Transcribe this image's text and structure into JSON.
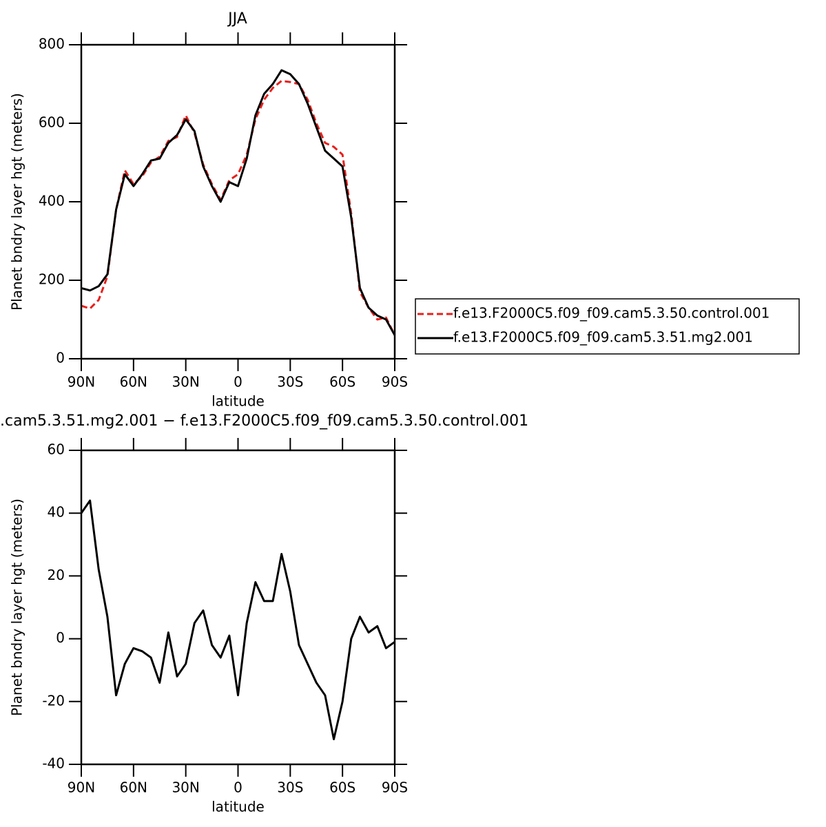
{
  "chart_data": [
    {
      "type": "line",
      "title": "JJA",
      "xlabel": "latitude",
      "ylabel": "Planet bndry layer hgt (meters)",
      "x": [
        90,
        85,
        80,
        75,
        70,
        65,
        60,
        55,
        50,
        45,
        40,
        35,
        30,
        25,
        20,
        15,
        10,
        5,
        0,
        -5,
        -10,
        -15,
        -20,
        -25,
        -30,
        -35,
        -40,
        -45,
        -50,
        -55,
        -60,
        -65,
        -70,
        -75,
        -80,
        -85,
        -90
      ],
      "xlim": [
        90,
        -90
      ],
      "xticks": [
        {
          "value": 90,
          "label": "90N"
        },
        {
          "value": 60,
          "label": "60N"
        },
        {
          "value": 30,
          "label": "30N"
        },
        0,
        {
          "value": -30,
          "label": "30S"
        },
        {
          "value": -60,
          "label": "60S"
        },
        {
          "value": -90,
          "label": "90S"
        }
      ],
      "ylim": [
        0,
        800
      ],
      "yticks": [
        0,
        200,
        400,
        600,
        800
      ],
      "legend": "right",
      "series": [
        {
          "name": "f.e13.F2000C5.f09_f09.cam5.3.50.control.001",
          "color": "#e8201c",
          "linestyle": "dashed",
          "values": [
            135,
            128,
            150,
            210,
            380,
            480,
            445,
            465,
            500,
            515,
            555,
            565,
            620,
            575,
            495,
            445,
            405,
            455,
            470,
            520,
            610,
            660,
            690,
            708,
            705,
            700,
            660,
            600,
            550,
            540,
            520,
            370,
            170,
            130,
            100,
            105,
            60
          ]
        },
        {
          "name": "f.e13.F2000C5.f09_f09.cam5.3.51.mg2.001",
          "color": "#000000",
          "linestyle": "solid",
          "values": [
            180,
            174,
            185,
            215,
            380,
            470,
            440,
            470,
            505,
            510,
            550,
            570,
            610,
            580,
            490,
            440,
            400,
            450,
            440,
            510,
            620,
            675,
            700,
            735,
            725,
            700,
            650,
            590,
            530,
            510,
            490,
            360,
            180,
            130,
            110,
            100,
            60
          ]
        }
      ]
    },
    {
      "type": "line",
      "title": ".cam5.3.51.mg2.001 − f.e13.F2000C5.f09_f09.cam5.3.50.control.001",
      "xlabel": "latitude",
      "ylabel": "Planet bndry layer hgt (meters)",
      "x": [
        90,
        85,
        80,
        75,
        70,
        65,
        60,
        55,
        50,
        45,
        40,
        35,
        30,
        25,
        20,
        15,
        10,
        5,
        0,
        -5,
        -10,
        -15,
        -20,
        -25,
        -30,
        -35,
        -40,
        -45,
        -50,
        -55,
        -60,
        -65,
        -70,
        -75,
        -80,
        -85,
        -90
      ],
      "xlim": [
        90,
        -90
      ],
      "xticks": [
        {
          "value": 90,
          "label": "90N"
        },
        {
          "value": 60,
          "label": "60N"
        },
        {
          "value": 30,
          "label": "30N"
        },
        0,
        {
          "value": -30,
          "label": "30S"
        },
        {
          "value": -60,
          "label": "60S"
        },
        {
          "value": -90,
          "label": "90S"
        }
      ],
      "ylim": [
        -40,
        60
      ],
      "yticks": [
        -40,
        -20,
        0,
        20,
        40,
        60
      ],
      "series": [
        {
          "color": "#000000",
          "linestyle": "solid",
          "values": [
            40,
            44,
            22,
            7,
            -18,
            -8,
            -3,
            -4,
            -6,
            -14,
            2,
            -12,
            -8,
            5,
            9,
            -2,
            -6,
            1,
            -18,
            5,
            18,
            12,
            12,
            27,
            15,
            -2,
            -8,
            -14,
            -18,
            -32,
            -20,
            0,
            7,
            2,
            4,
            -3,
            -1
          ]
        }
      ]
    }
  ]
}
